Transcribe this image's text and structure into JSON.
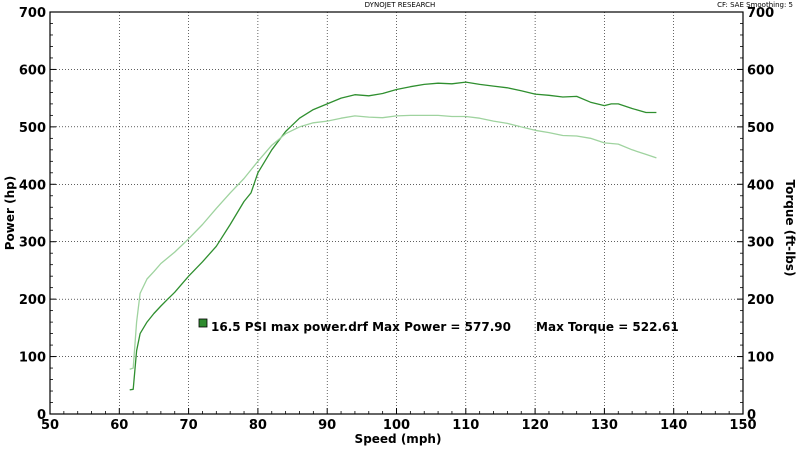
{
  "header": {
    "title": "DYNOJET RESEARCH",
    "settings": "CF: SAE   Smoothing: 5"
  },
  "chart_data": {
    "type": "line",
    "xlabel": "Speed (mph)",
    "ylabel_left": "Power (hp)",
    "ylabel_right": "Torque (ft-lbs)",
    "xlim": [
      50,
      150
    ],
    "ylim": [
      0,
      700
    ],
    "x_ticks": [
      "50",
      "60",
      "70",
      "80",
      "90",
      "100",
      "110",
      "120",
      "130",
      "140",
      "150"
    ],
    "y_ticks": [
      "0",
      "100",
      "200",
      "300",
      "400",
      "500",
      "600",
      "700"
    ],
    "grid": true,
    "legend": {
      "text": "16.5 PSI max power.drf Max Power = 577.90      Max Torque = 522.61",
      "swatch_color": "#2e8b2e"
    },
    "series": [
      {
        "name": "Power",
        "color": "#2f8f2f",
        "points": [
          [
            61.5,
            42
          ],
          [
            62,
            43
          ],
          [
            62.5,
            110
          ],
          [
            63,
            140
          ],
          [
            64,
            160
          ],
          [
            65,
            175
          ],
          [
            66,
            188
          ],
          [
            67,
            200
          ],
          [
            68,
            212
          ],
          [
            70,
            240
          ],
          [
            72,
            265
          ],
          [
            74,
            292
          ],
          [
            76,
            330
          ],
          [
            78,
            370
          ],
          [
            79,
            385
          ],
          [
            80,
            420
          ],
          [
            82,
            460
          ],
          [
            84,
            492
          ],
          [
            86,
            515
          ],
          [
            88,
            530
          ],
          [
            90,
            540
          ],
          [
            92,
            550
          ],
          [
            94,
            556
          ],
          [
            96,
            554
          ],
          [
            98,
            558
          ],
          [
            100,
            565
          ],
          [
            102,
            570
          ],
          [
            104,
            574
          ],
          [
            106,
            576
          ],
          [
            108,
            575
          ],
          [
            110,
            578
          ],
          [
            112,
            574
          ],
          [
            114,
            571
          ],
          [
            116,
            568
          ],
          [
            118,
            563
          ],
          [
            120,
            557
          ],
          [
            122,
            555
          ],
          [
            124,
            552
          ],
          [
            126,
            553
          ],
          [
            128,
            543
          ],
          [
            130,
            537
          ],
          [
            131,
            540
          ],
          [
            132,
            540
          ],
          [
            134,
            532
          ],
          [
            136,
            525
          ],
          [
            137.5,
            525
          ]
        ]
      },
      {
        "name": "Torque",
        "color": "#9fd39f",
        "points": [
          [
            61.5,
            78
          ],
          [
            62,
            80
          ],
          [
            62.5,
            160
          ],
          [
            63,
            210
          ],
          [
            64,
            235
          ],
          [
            65,
            248
          ],
          [
            66,
            262
          ],
          [
            68,
            282
          ],
          [
            70,
            305
          ],
          [
            72,
            330
          ],
          [
            74,
            358
          ],
          [
            76,
            385
          ],
          [
            78,
            410
          ],
          [
            80,
            440
          ],
          [
            82,
            468
          ],
          [
            84,
            488
          ],
          [
            86,
            500
          ],
          [
            88,
            507
          ],
          [
            90,
            510
          ],
          [
            92,
            515
          ],
          [
            94,
            519
          ],
          [
            96,
            517
          ],
          [
            98,
            516
          ],
          [
            100,
            519
          ],
          [
            102,
            520
          ],
          [
            104,
            520
          ],
          [
            106,
            520
          ],
          [
            108,
            518
          ],
          [
            110,
            518
          ],
          [
            112,
            515
          ],
          [
            114,
            510
          ],
          [
            116,
            506
          ],
          [
            118,
            500
          ],
          [
            120,
            494
          ],
          [
            122,
            490
          ],
          [
            124,
            485
          ],
          [
            126,
            484
          ],
          [
            128,
            480
          ],
          [
            130,
            472
          ],
          [
            132,
            470
          ],
          [
            134,
            460
          ],
          [
            136,
            452
          ],
          [
            137.5,
            446
          ]
        ]
      }
    ]
  }
}
